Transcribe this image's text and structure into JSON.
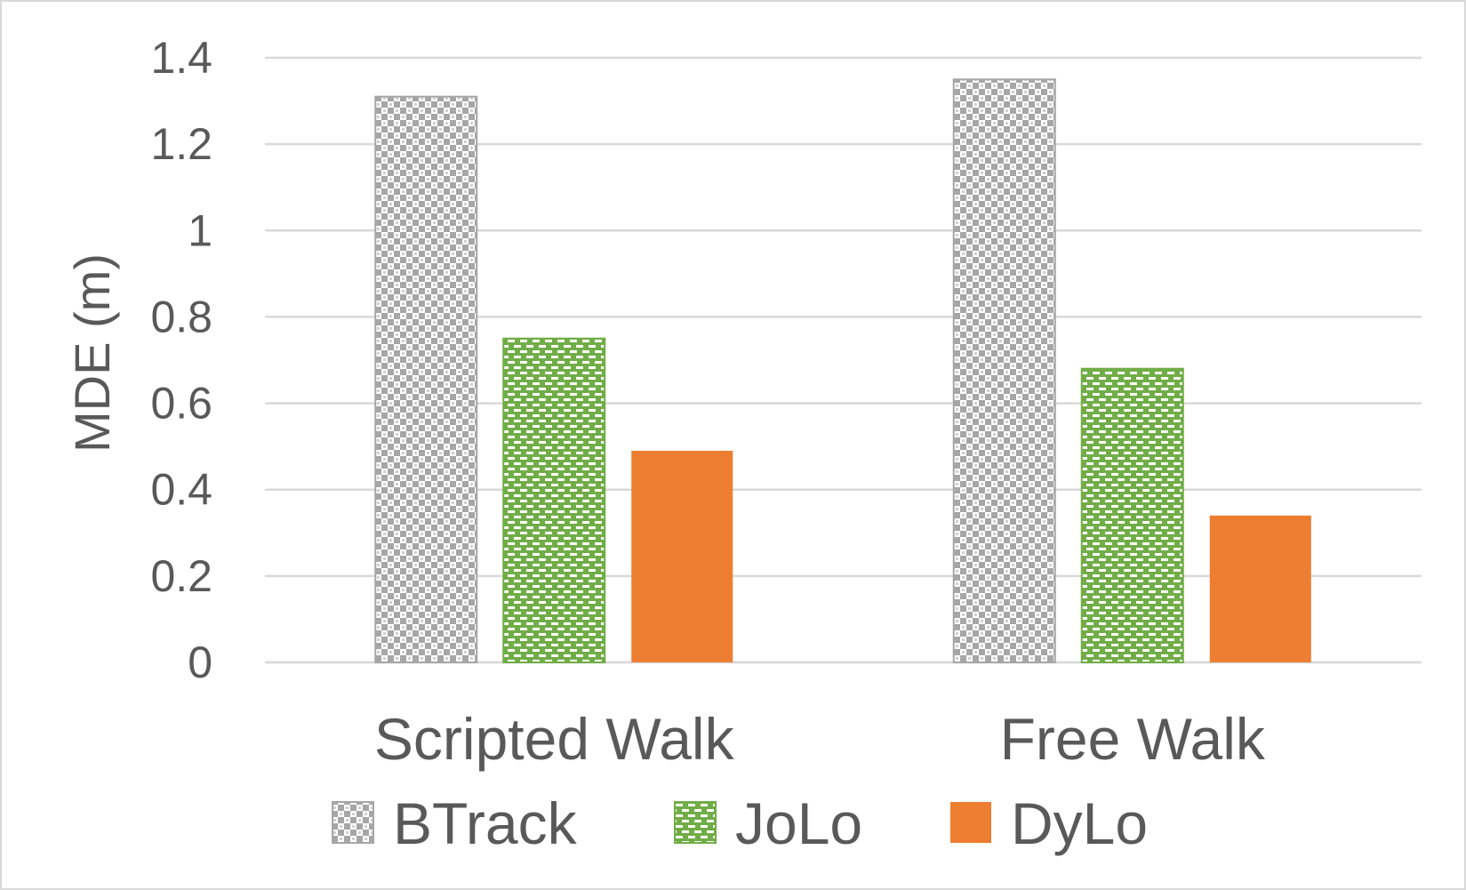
{
  "chart_data": {
    "type": "bar",
    "title": "",
    "xlabel": "",
    "ylabel": "MDE (m)",
    "ylim": [
      0,
      1.4
    ],
    "yticks": [
      "0",
      "0.2",
      "0.4",
      "0.6",
      "0.8",
      "1",
      "1.2",
      "1.4"
    ],
    "grid": true,
    "legend_position": "bottom",
    "categories": [
      "Scripted Walk",
      "Free Walk"
    ],
    "series": [
      {
        "name": "BTrack",
        "values": [
          1.31,
          1.35
        ],
        "color": "#a6a6a6",
        "pattern": "checker"
      },
      {
        "name": "JoLo",
        "values": [
          0.75,
          0.68
        ],
        "color": "#70ad47",
        "pattern": "brick"
      },
      {
        "name": "DyLo",
        "values": [
          0.49,
          0.34
        ],
        "color": "#ed7d31",
        "pattern": "solid"
      }
    ]
  }
}
